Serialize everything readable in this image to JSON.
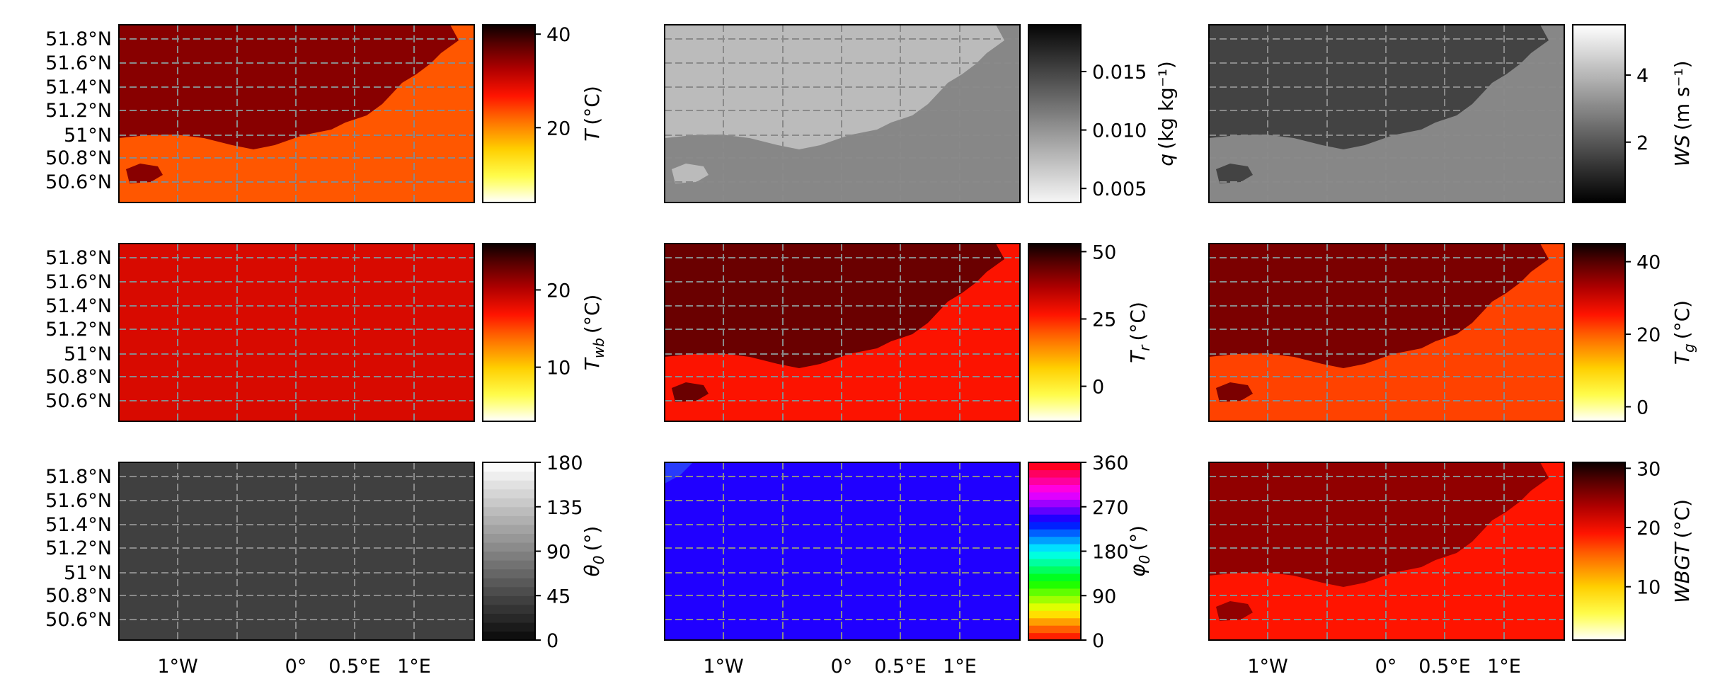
{
  "lat_ticks": [
    "51.8°N",
    "51.6°N",
    "51.4°N",
    "51.2°N",
    "51°N",
    "50.8°N",
    "50.6°N"
  ],
  "lon_ticks": [
    "1°W",
    "0°",
    "0.5°E",
    "1°E"
  ],
  "chart_data": [
    {
      "type": "heatmap",
      "name": "T",
      "colormap": "hot_r",
      "pattern": "land_high",
      "label": "T (°C)",
      "label_main": "T",
      "label_sub": "",
      "label_unit": "(°C)",
      "ticks": [
        "40",
        "20"
      ],
      "tick_values": [
        40,
        20
      ],
      "clim": [
        4,
        42
      ],
      "landValue": 35,
      "seaValue": 23,
      "lat_labels": true,
      "lon_labels": false
    },
    {
      "type": "heatmap",
      "name": "q",
      "colormap": "gray_r",
      "pattern": "land_low",
      "label": "q (kg kg⁻¹)",
      "label_main": "q",
      "label_sub": "",
      "label_unit": "(kg kg⁻¹)",
      "ticks": [
        "0.015",
        "0.010",
        "0.005"
      ],
      "tick_values": [
        0.015,
        0.01,
        0.005
      ],
      "clim": [
        0.0038,
        0.019
      ],
      "landValue": 0.0075,
      "seaValue": 0.0108,
      "lat_labels": false,
      "lon_labels": false
    },
    {
      "type": "heatmap",
      "name": "WS",
      "colormap": "gray",
      "pattern": "land_low",
      "label": "WS (m s⁻¹)",
      "label_main": "WS",
      "label_sub": "",
      "label_unit": "(m s⁻¹)",
      "ticks": [
        "4",
        "2"
      ],
      "tick_values": [
        4,
        2
      ],
      "clim": [
        0.2,
        5.5
      ],
      "landValue": 1.6,
      "seaValue": 3.0,
      "lat_labels": false,
      "lon_labels": false
    },
    {
      "type": "heatmap",
      "name": "Twb",
      "colormap": "hot_r",
      "pattern": "flat",
      "label": "Twb (°C)",
      "label_main": "T",
      "label_sub": "wb",
      "label_unit": "(°C)",
      "ticks": [
        "20",
        "10"
      ],
      "tick_values": [
        20,
        10
      ],
      "clim": [
        3,
        26
      ],
      "landValue": 19.5,
      "seaValue": 18.5,
      "lat_labels": true,
      "lon_labels": false
    },
    {
      "type": "heatmap",
      "name": "Tr",
      "colormap": "hot_r",
      "pattern": "land_high",
      "label": "Tr (°C)",
      "label_main": "T",
      "label_sub": "r",
      "label_unit": "(°C)",
      "ticks": [
        "50",
        "25",
        "0"
      ],
      "tick_values": [
        50,
        25,
        0
      ],
      "clim": [
        -13,
        53
      ],
      "landValue": 44,
      "seaValue": 27,
      "lat_labels": false,
      "lon_labels": false
    },
    {
      "type": "heatmap",
      "name": "Tg",
      "colormap": "hot_r",
      "pattern": "land_high",
      "label": "Tg (°C)",
      "label_main": "T",
      "label_sub": "g",
      "label_unit": "(°C)",
      "ticks": [
        "40",
        "20",
        "0"
      ],
      "tick_values": [
        40,
        20,
        0
      ],
      "clim": [
        -4,
        45
      ],
      "landValue": 37,
      "seaValue": 22,
      "lat_labels": false,
      "lon_labels": false
    },
    {
      "type": "heatmap",
      "name": "theta0",
      "colormap": "gray_discrete",
      "pattern": "flat",
      "label": "θ0 (°)",
      "label_main": "θ",
      "label_sub": "0",
      "label_unit": "(°)",
      "ticks": [
        "180",
        "135",
        "90",
        "45",
        "0"
      ],
      "tick_values": [
        180,
        135,
        90,
        45,
        0
      ],
      "clim": [
        0,
        180
      ],
      "landValue": 36,
      "seaValue": 36,
      "lat_labels": true,
      "lon_labels": true
    },
    {
      "type": "heatmap",
      "name": "phi0",
      "colormap": "hsv_discrete",
      "pattern": "flat_blue",
      "label": "φ0 (°)",
      "label_main": "φ",
      "label_sub": "0",
      "label_unit": "(°)",
      "ticks": [
        "360",
        "270",
        "180",
        "90",
        "0"
      ],
      "tick_values": [
        360,
        270,
        180,
        90,
        0
      ],
      "clim": [
        0,
        360
      ],
      "landValue": 250,
      "seaValue": 250,
      "lat_labels": false,
      "lon_labels": true
    },
    {
      "type": "heatmap",
      "name": "WBGT",
      "colormap": "hot_r",
      "pattern": "land_high",
      "label": "WBGT (°C)",
      "label_main": "WBGT",
      "label_sub": "",
      "label_unit": "(°C)",
      "ticks": [
        "30",
        "20",
        "10"
      ],
      "tick_values": [
        30,
        20,
        10
      ],
      "clim": [
        1,
        31
      ],
      "landValue": 25,
      "seaValue": 19,
      "lat_labels": false,
      "lon_labels": true
    }
  ]
}
